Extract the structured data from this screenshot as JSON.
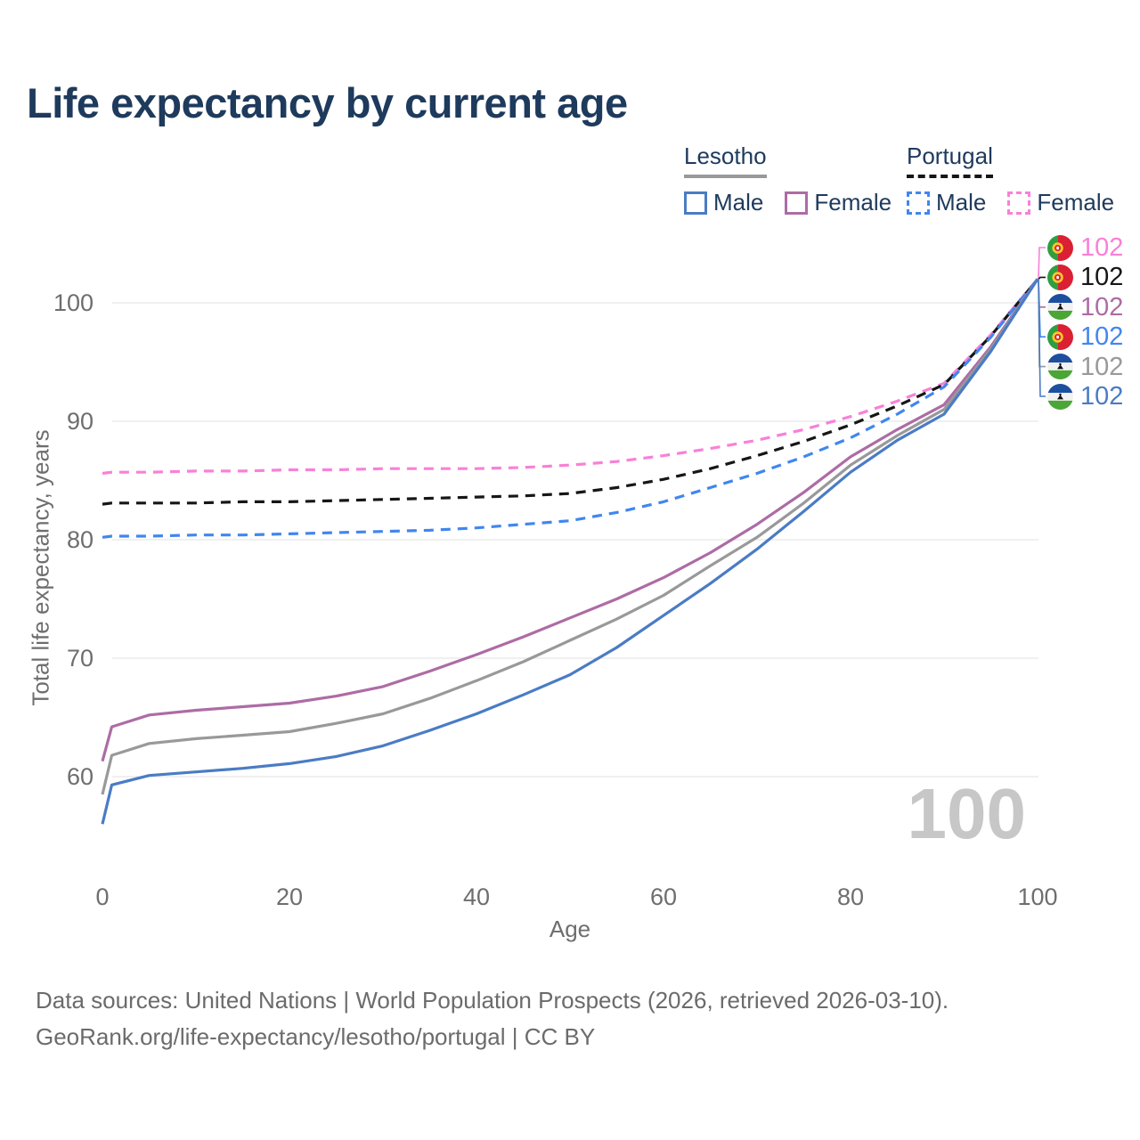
{
  "watermark": "100",
  "legend": {
    "groups": [
      {
        "country": "Lesotho",
        "line_style": "solid",
        "underline_color": "#999999",
        "items": [
          {
            "label": "Male",
            "color": "#4a7cc4",
            "dash": false
          },
          {
            "label": "Female",
            "color": "#ad6ca5",
            "dash": false
          }
        ]
      },
      {
        "country": "Portugal",
        "line_style": "dashed",
        "underline_color": "#161616",
        "items": [
          {
            "label": "Male",
            "color": "#4186f0",
            "dash": true
          },
          {
            "label": "Female",
            "color": "#f980d8",
            "dash": true
          }
        ]
      }
    ]
  },
  "chart_data": {
    "type": "line",
    "title": "Life expectancy by current age",
    "xlabel": "Age",
    "ylabel": "Total life expectancy, years",
    "x_ticks": [
      0,
      20,
      40,
      60,
      80,
      100
    ],
    "y_ticks": [
      60,
      70,
      80,
      90,
      100
    ],
    "xlim": [
      0,
      100
    ],
    "ylim": [
      55,
      104
    ],
    "grid": "horizontal",
    "legend_position": "top-right",
    "x": [
      0,
      1,
      5,
      10,
      15,
      20,
      25,
      30,
      35,
      40,
      45,
      50,
      55,
      60,
      65,
      70,
      75,
      80,
      85,
      90,
      95,
      100
    ],
    "series": [
      {
        "id": "portugal_female",
        "country": "Portugal",
        "sex": "Female",
        "color": "#f980d8",
        "dash": true,
        "values": [
          85.6,
          85.7,
          85.7,
          85.8,
          85.8,
          85.9,
          85.9,
          86.0,
          86.0,
          86.0,
          86.1,
          86.3,
          86.6,
          87.1,
          87.7,
          88.4,
          89.3,
          90.4,
          91.7,
          93.2,
          97.3,
          102
        ]
      },
      {
        "id": "portugal_both",
        "country": "Portugal",
        "sex": "Both",
        "color": "#161616",
        "dash": true,
        "values": [
          83.0,
          83.1,
          83.1,
          83.1,
          83.2,
          83.2,
          83.3,
          83.4,
          83.5,
          83.6,
          83.7,
          83.9,
          84.4,
          85.1,
          86.0,
          87.1,
          88.3,
          89.7,
          91.3,
          93.1,
          97.2,
          102
        ]
      },
      {
        "id": "portugal_male",
        "country": "Portugal",
        "sex": "Male",
        "color": "#4186f0",
        "dash": true,
        "values": [
          80.2,
          80.3,
          80.3,
          80.4,
          80.4,
          80.5,
          80.6,
          80.7,
          80.8,
          81.0,
          81.3,
          81.6,
          82.3,
          83.2,
          84.4,
          85.6,
          87.0,
          88.6,
          90.6,
          92.9,
          97.1,
          102
        ]
      },
      {
        "id": "lesotho_female",
        "country": "Lesotho",
        "sex": "Female",
        "color": "#ad6ca5",
        "dash": false,
        "values": [
          61.3,
          64.2,
          65.2,
          65.6,
          65.9,
          66.2,
          66.8,
          67.6,
          68.9,
          70.3,
          71.8,
          73.4,
          75.0,
          76.8,
          78.9,
          81.3,
          84.0,
          87.0,
          89.3,
          91.4,
          96.3,
          102
        ]
      },
      {
        "id": "lesotho_both",
        "country": "Lesotho",
        "sex": "Both",
        "color": "#999999",
        "dash": false,
        "values": [
          58.5,
          61.8,
          62.8,
          63.2,
          63.5,
          63.8,
          64.5,
          65.3,
          66.6,
          68.1,
          69.7,
          71.5,
          73.3,
          75.3,
          77.8,
          80.2,
          83.1,
          86.3,
          88.8,
          91.0,
          96.1,
          102
        ]
      },
      {
        "id": "lesotho_male",
        "country": "Lesotho",
        "sex": "Male",
        "color": "#4a7cc4",
        "dash": false,
        "values": [
          56.0,
          59.3,
          60.1,
          60.4,
          60.7,
          61.1,
          61.7,
          62.6,
          63.9,
          65.3,
          66.9,
          68.6,
          70.9,
          73.6,
          76.3,
          79.2,
          82.4,
          85.7,
          88.4,
          90.6,
          95.9,
          102
        ]
      }
    ]
  },
  "end_labels": [
    {
      "country": "portugal",
      "series": "portugal_female",
      "value": "102",
      "color": "#f980d8"
    },
    {
      "country": "portugal",
      "series": "portugal_both",
      "value": "102",
      "color": "#161616"
    },
    {
      "country": "lesotho",
      "series": "lesotho_female",
      "value": "102",
      "color": "#ad6ca5"
    },
    {
      "country": "portugal",
      "series": "portugal_male",
      "value": "102",
      "color": "#4186f0"
    },
    {
      "country": "lesotho",
      "series": "lesotho_both",
      "value": "102",
      "color": "#999999"
    },
    {
      "country": "lesotho",
      "series": "lesotho_male",
      "value": "102",
      "color": "#4a7cc4"
    }
  ],
  "footer": {
    "line1": "Data sources: United Nations | World Population Prospects (2026, retrieved 2026-03-10).",
    "line2": "GeoRank.org/life-expectancy/lesotho/portugal | CC BY"
  }
}
